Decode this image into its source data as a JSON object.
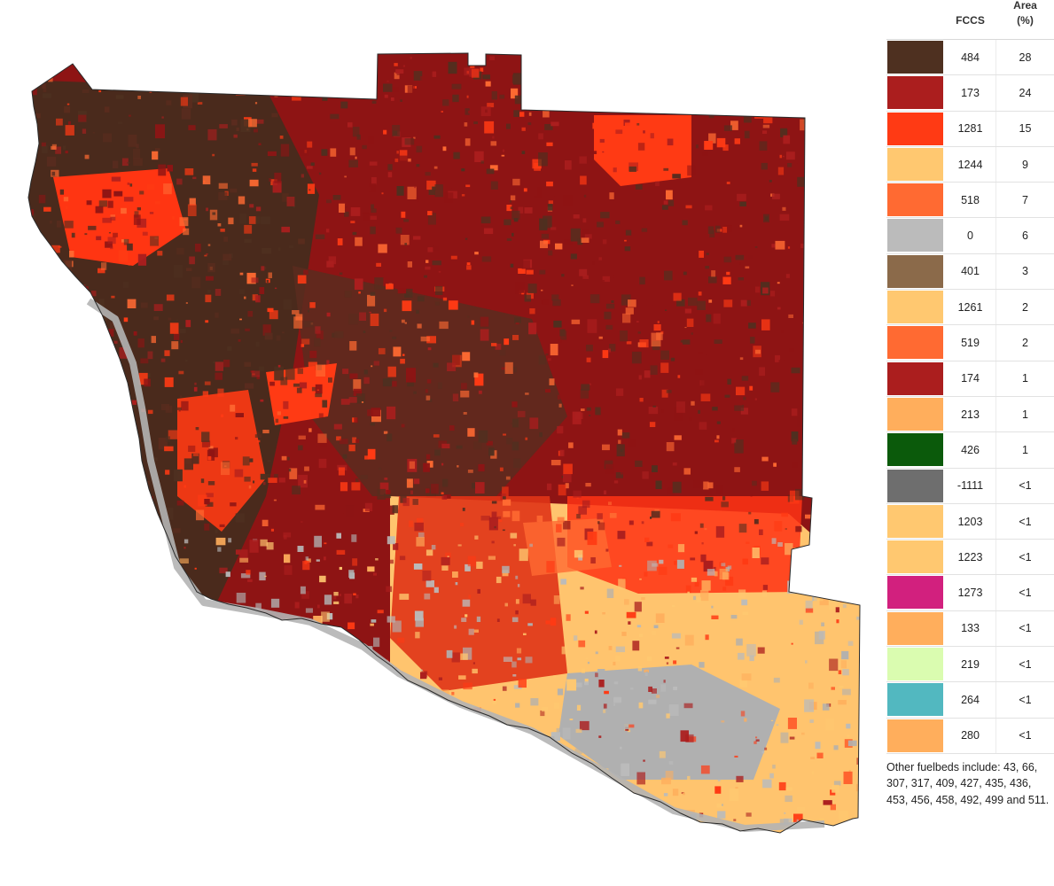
{
  "map": {
    "colors": {
      "background": "#ffffff",
      "outline": "#2a2a2a",
      "river": "#b4b4b4"
    }
  },
  "legend": {
    "header_fccs": "FCCS",
    "header_area": "Area\n(%)",
    "rows": [
      {
        "color": "#4e3020",
        "fccs": "484",
        "area": "28"
      },
      {
        "color": "#ab1e1e",
        "fccs": "173",
        "area": "24"
      },
      {
        "color": "#ff3a14",
        "fccs": "1281",
        "area": "15"
      },
      {
        "color": "#ffc870",
        "fccs": "1244",
        "area": "9"
      },
      {
        "color": "#ff6a32",
        "fccs": "518",
        "area": "7"
      },
      {
        "color": "#bbbbbb",
        "fccs": "0",
        "area": "6"
      },
      {
        "color": "#8b6a4a",
        "fccs": "401",
        "area": "3"
      },
      {
        "color": "#ffc870",
        "fccs": "1261",
        "area": "2"
      },
      {
        "color": "#ff6a32",
        "fccs": "519",
        "area": "2"
      },
      {
        "color": "#ab1e1e",
        "fccs": "174",
        "area": "1"
      },
      {
        "color": "#ffae5c",
        "fccs": "213",
        "area": "1"
      },
      {
        "color": "#0b5a0b",
        "fccs": "426",
        "area": "1"
      },
      {
        "color": "#6e6e6e",
        "fccs": "-1111",
        "area": "<1"
      },
      {
        "color": "#ffc870",
        "fccs": "1203",
        "area": "<1"
      },
      {
        "color": "#ffc870",
        "fccs": "1223",
        "area": "<1"
      },
      {
        "color": "#d2207e",
        "fccs": "1273",
        "area": "<1"
      },
      {
        "color": "#ffae5c",
        "fccs": "133",
        "area": "<1"
      },
      {
        "color": "#dafcb0",
        "fccs": "219",
        "area": "<1"
      },
      {
        "color": "#52b8c0",
        "fccs": "264",
        "area": "<1"
      },
      {
        "color": "#ffae5c",
        "fccs": "280",
        "area": "<1"
      }
    ],
    "note": "Other fuelbeds include: 43, 66, 307, 317, 409, 427, 435, 436, 453, 456, 458, 492, 499 and 511."
  }
}
